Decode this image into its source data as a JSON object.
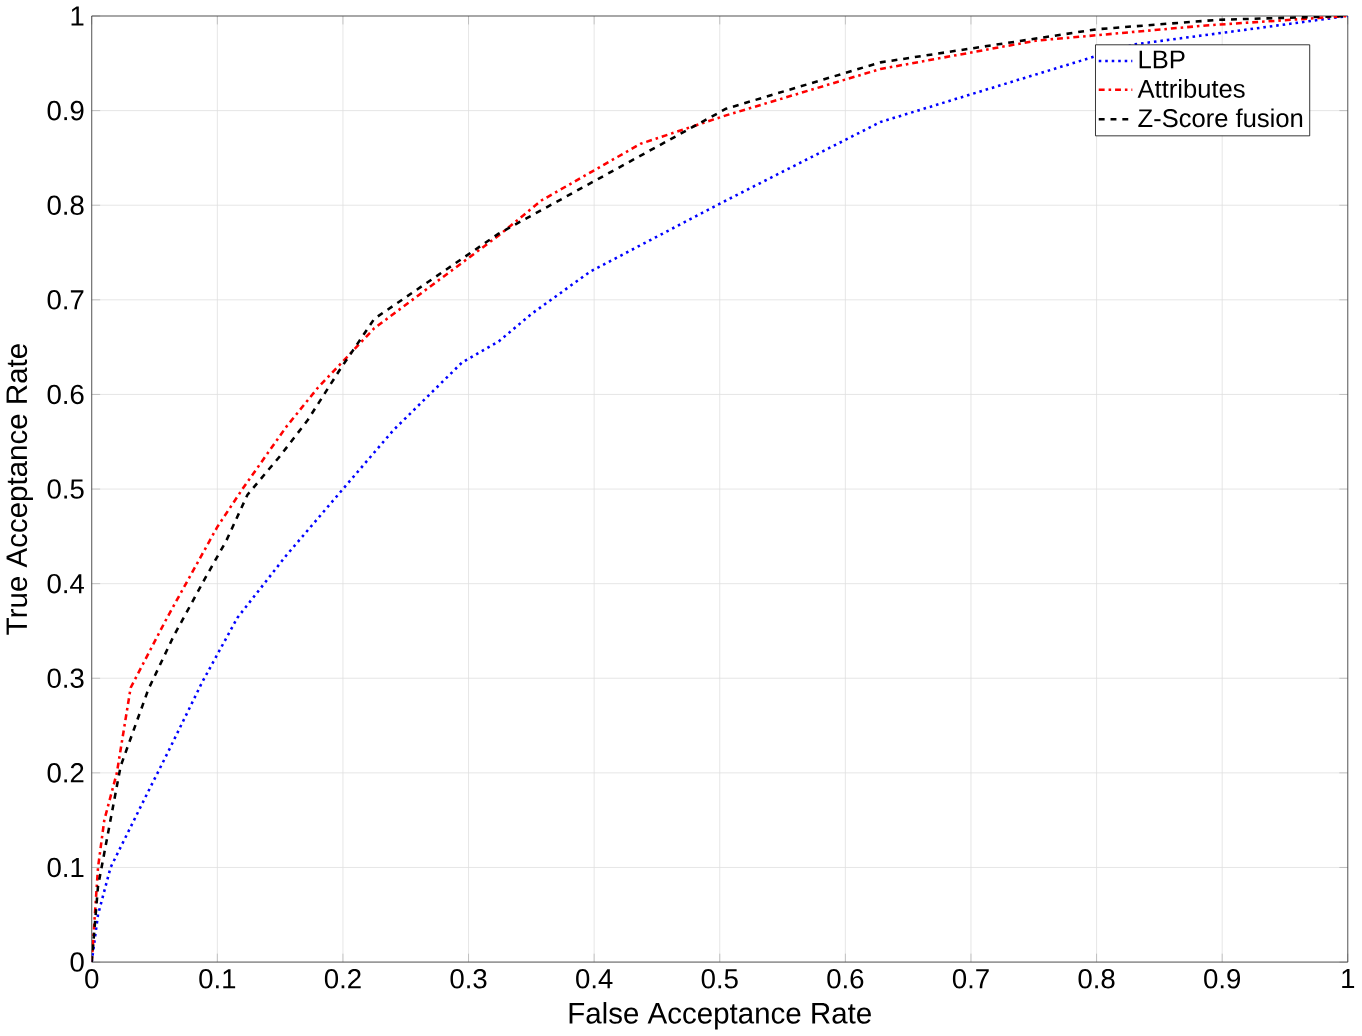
{
  "chart_data": {
    "type": "line",
    "xlabel": "False Acceptance Rate",
    "ylabel": "True Acceptance Rate",
    "xlim": [
      0,
      1
    ],
    "ylim": [
      0,
      1
    ],
    "xticks": [
      0,
      0.1,
      0.2,
      0.3,
      0.4,
      0.5,
      0.6,
      0.7,
      0.8,
      0.9,
      1
    ],
    "yticks": [
      0,
      0.1,
      0.2,
      0.3,
      0.4,
      0.5,
      0.6,
      0.7,
      0.8,
      0.9,
      1
    ],
    "grid": true,
    "legend": "top right",
    "marker": "none",
    "series": [
      {
        "name": "LBP",
        "color": "#0000ff",
        "line_style": "dotted",
        "x": [
          0,
          0.005,
          0.015,
          0.043,
          0.06,
          0.088,
          0.116,
          0.155,
          0.2,
          0.24,
          0.295,
          0.324,
          0.35,
          0.397,
          0.505,
          0.628,
          0.83,
          0.916,
          1
        ],
        "values": [
          0,
          0.05,
          0.1,
          0.175,
          0.22,
          0.296,
          0.364,
          0.43,
          0.5,
          0.562,
          0.634,
          0.656,
          0.685,
          0.73,
          0.805,
          0.888,
          0.97,
          0.985,
          1
        ]
      },
      {
        "name": "Attributes",
        "color": "#ff0000",
        "line_style": "dashdotted",
        "x": [
          0,
          0.005,
          0.01,
          0.02,
          0.031,
          0.06,
          0.1,
          0.12,
          0.155,
          0.18,
          0.225,
          0.324,
          0.358,
          0.437,
          0.505,
          0.628,
          0.752,
          0.887,
          1
        ],
        "values": [
          0,
          0.1,
          0.15,
          0.2,
          0.29,
          0.364,
          0.46,
          0.5,
          0.566,
          0.607,
          0.67,
          0.768,
          0.805,
          0.865,
          0.895,
          0.944,
          0.974,
          0.99,
          1
        ]
      },
      {
        "name": "Z-Score fusion",
        "color": "#000000",
        "line_style": "dashed",
        "x": [
          0,
          0.005,
          0.023,
          0.045,
          0.065,
          0.09,
          0.107,
          0.124,
          0.15,
          0.172,
          0.197,
          0.225,
          0.324,
          0.505,
          0.628,
          0.8,
          0.897,
          1
        ],
        "values": [
          0,
          0.08,
          0.207,
          0.288,
          0.344,
          0.405,
          0.445,
          0.494,
          0.535,
          0.573,
          0.625,
          0.68,
          0.77,
          0.902,
          0.951,
          0.986,
          0.996,
          1
        ]
      }
    ]
  }
}
